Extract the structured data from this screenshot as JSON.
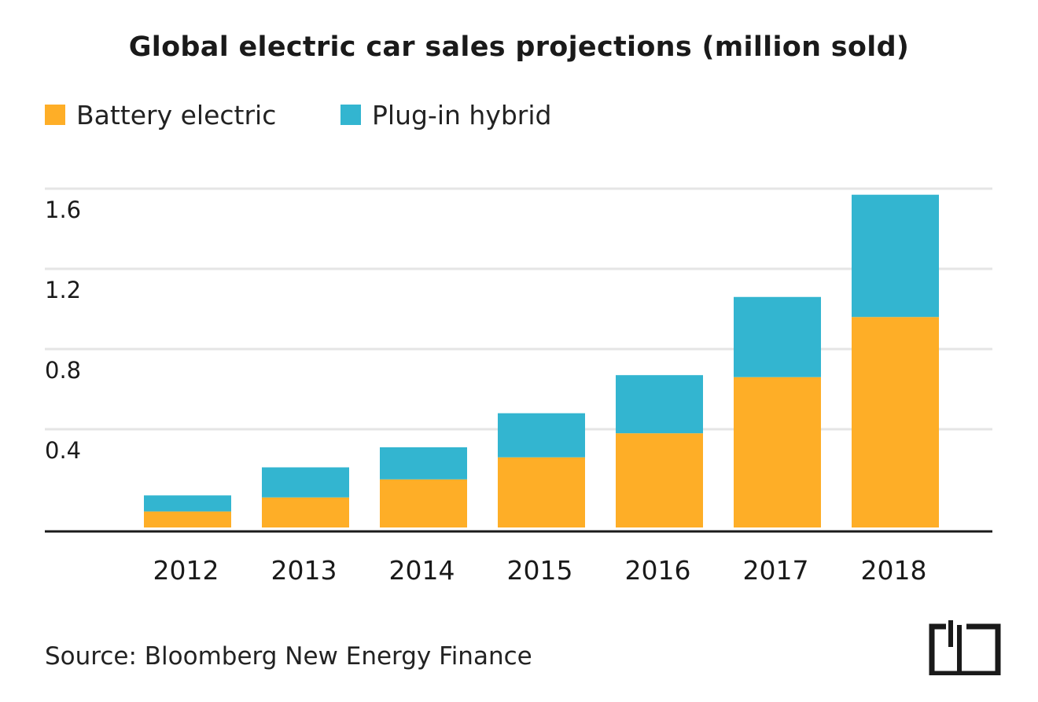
{
  "colors": {
    "battery": "#FEAE27",
    "phev": "#33B5D0",
    "grid": "#E5E5E5",
    "axis": "#1A1A1A",
    "text": "#1A1A1A"
  },
  "source": "Source: Bloomberg New Energy Finance",
  "chart_data": {
    "type": "bar",
    "stacked": true,
    "title": "Global electric car sales projections (million sold)",
    "xlabel": "",
    "ylabel": "",
    "categories": [
      "2012",
      "2013",
      "2014",
      "2015",
      "2016",
      "2017",
      "2018"
    ],
    "series": [
      {
        "name": "Battery electric",
        "color": "#FEAE27",
        "values": [
          0.08,
          0.15,
          0.24,
          0.35,
          0.47,
          0.75,
          1.05
        ]
      },
      {
        "name": "Plug-in hybrid",
        "color": "#33B5D0",
        "values": [
          0.08,
          0.15,
          0.16,
          0.22,
          0.29,
          0.4,
          0.61
        ]
      }
    ],
    "yticks": [
      "0.4",
      "0.8",
      "1.2",
      "1.6"
    ],
    "ylim": [
      0,
      1.7
    ],
    "grid": true,
    "legend": "top-left"
  }
}
